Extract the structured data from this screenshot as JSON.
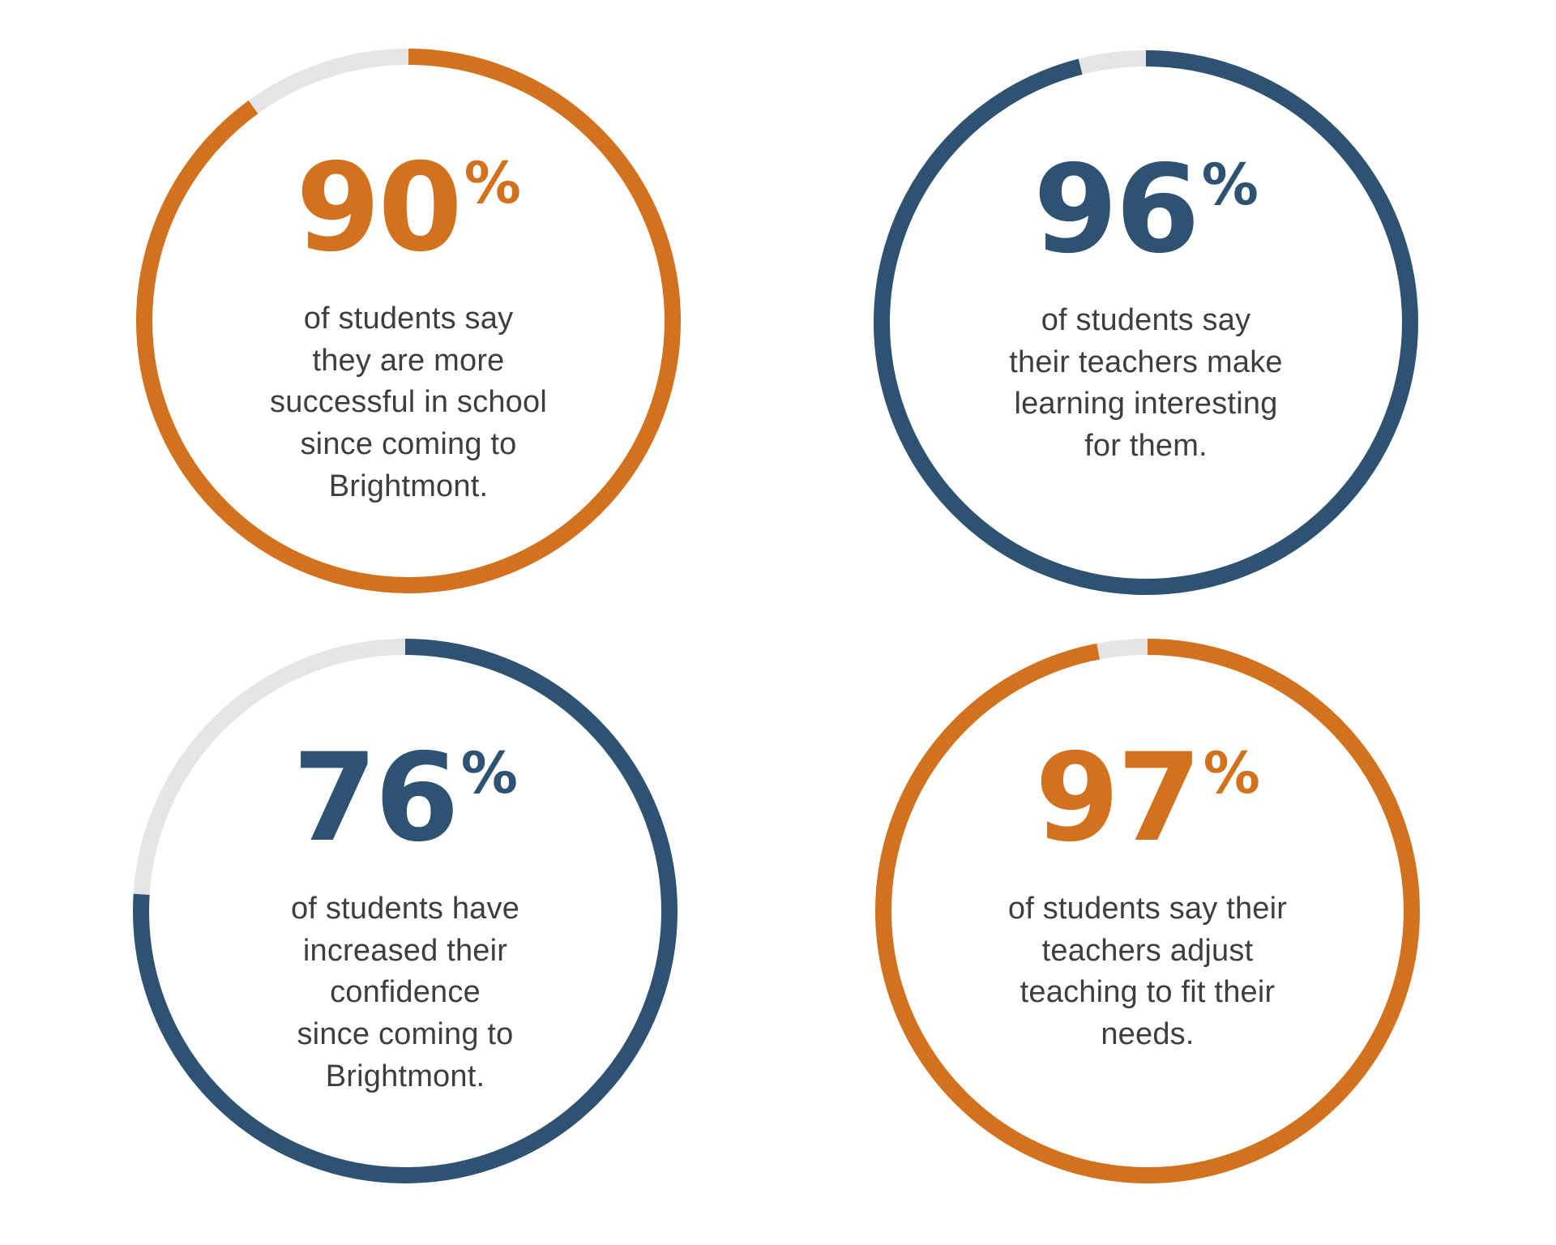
{
  "colors": {
    "orange": "#D2711E",
    "navy": "#2E5271",
    "gray": "#E4E5E6",
    "text": "#3E3E40",
    "background": "#FFFFFF"
  },
  "chart_data": [
    {
      "type": "donut",
      "value": 90,
      "unit": "%",
      "value_display": "90",
      "ring_color": "orange",
      "track_color": "gray",
      "gap_position": "ends at 12 o'clock, extends counterclockwise",
      "start_offset_deg": 0,
      "description": "of students say\nthey are more\nsuccessful in school\nsince coming to\nBrightmont."
    },
    {
      "type": "donut",
      "value": 96,
      "unit": "%",
      "value_display": "96",
      "ring_color": "navy",
      "track_color": "gray",
      "gap_position": "ends at 12 o'clock, extends counterclockwise",
      "start_offset_deg": 0,
      "description": "of students say\ntheir teachers make\nlearning interesting\nfor them."
    },
    {
      "type": "donut",
      "value": 76,
      "unit": "%",
      "value_display": "76",
      "ring_color": "navy",
      "track_color": "gray",
      "gap_position": "ends at 12 o'clock, extends counterclockwise",
      "start_offset_deg": 0,
      "description": "of students have\nincreased their\nconfidence\nsince coming to\nBrightmont."
    },
    {
      "type": "donut",
      "value": 97,
      "unit": "%",
      "value_display": "97",
      "ring_color": "orange",
      "track_color": "gray",
      "gap_position": "ends at 12 o'clock, extends counterclockwise",
      "start_offset_deg": 0,
      "description": "of students say their\nteachers adjust\nteaching to fit their\nneeds."
    }
  ]
}
